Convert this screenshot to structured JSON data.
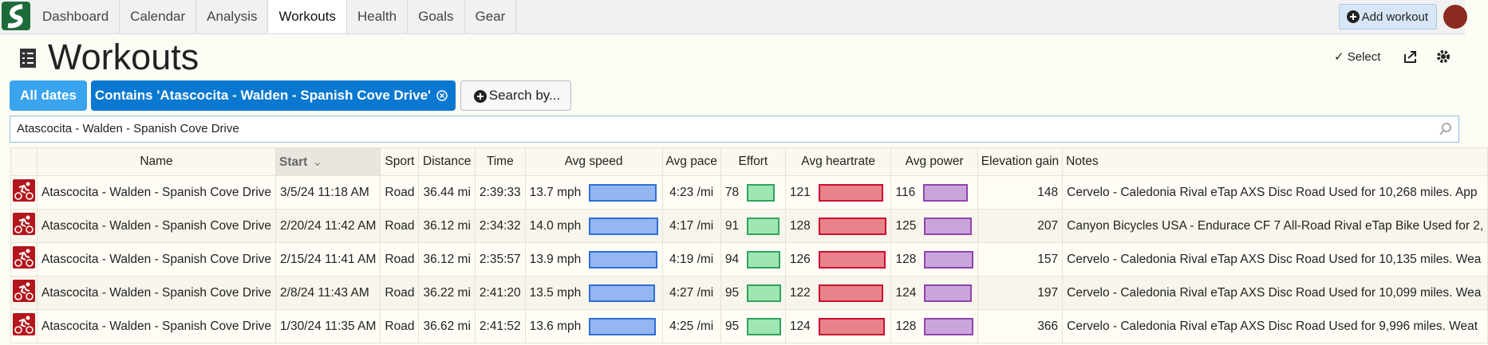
{
  "nav": {
    "items": [
      "Dashboard",
      "Calendar",
      "Analysis",
      "Workouts",
      "Health",
      "Goals",
      "Gear"
    ]
  },
  "actions": {
    "add_workout": "Add workout",
    "select": "Select"
  },
  "header": {
    "title": "Workouts"
  },
  "filters": [
    "All dates",
    "Contains 'Atascocita - Walden - Spanish Cove Drive'",
    "Search by..."
  ],
  "search": "Atascocita - Walden - Spanish Cove Drive",
  "table": {
    "columns": [
      "Name",
      "Start",
      "Sport",
      "Distance",
      "Time",
      "Avg speed",
      "Avg pace",
      "Effort",
      "Avg heartrate",
      "Avg power",
      "Elevation gain",
      "Notes"
    ],
    "rows": [
      [
        "Atascocita - Walden - Spanish Cove Drive",
        "3/5/24 11:18 AM",
        "Road",
        "36.44 mi",
        "2:39:33",
        "13.7 mph",
        "4:23 /mi",
        78,
        121,
        116,
        148,
        "Cervelo - Caledonia Rival eTap AXS Disc Road Used for 10,268 miles. App"
      ],
      [
        "Atascocita - Walden - Spanish Cove Drive",
        "2/20/24 11:42 AM",
        "Road",
        "36.12 mi",
        "2:34:32",
        "14.0 mph",
        "4:17 /mi",
        91,
        128,
        125,
        207,
        "Canyon Bicycles USA - Endurace CF 7 All-Road Rival eTap Bike Used for 2,"
      ],
      [
        "Atascocita - Walden - Spanish Cove Drive",
        "2/15/24 11:41 AM",
        "Road",
        "36.12 mi",
        "2:35:57",
        "13.9 mph",
        "4:19 /mi",
        94,
        126,
        128,
        157,
        "Cervelo - Caledonia Rival eTap AXS Disc Road Used for 10,135 miles. Wea"
      ],
      [
        "Atascocita - Walden - Spanish Cove Drive",
        "2/8/24 11:43 AM",
        "Road",
        "36.22 mi",
        "2:41:20",
        "13.5 mph",
        "4:27 /mi",
        95,
        122,
        124,
        197,
        "Cervelo - Caledonia Rival eTap AXS Disc Road Used for 10,099 miles. Wea"
      ],
      [
        "Atascocita - Walden - Spanish Cove Drive",
        "1/30/24 11:35 AM",
        "Road",
        "36.62 mi",
        "2:41:52",
        "13.6 mph",
        "4:25 /mi",
        95,
        124,
        128,
        366,
        "Cervelo - Caledonia Rival eTap AXS Disc Road Used for 9,996 miles. Weat"
      ]
    ]
  }
}
